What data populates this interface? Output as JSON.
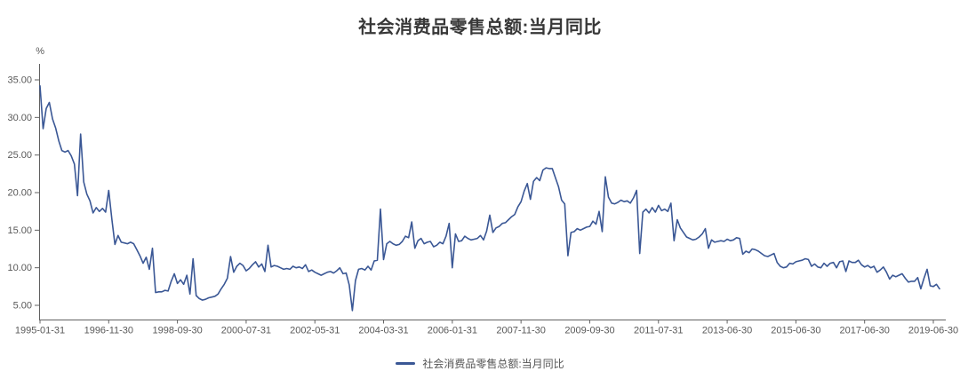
{
  "title": "社会消费品零售总额:当月同比",
  "legend": {
    "label": "社会消费品零售总额:当月同比"
  },
  "y_axis": {
    "unit": "%",
    "ticks": [
      "35.00",
      "30.00",
      "25.00",
      "20.00",
      "15.00",
      "10.00",
      "5.00"
    ]
  },
  "x_axis": {
    "tick_labels": [
      "1995-01-31",
      "1996-11-30",
      "1998-09-30",
      "2000-07-31",
      "2002-05-31",
      "2004-03-31",
      "2006-01-31",
      "2007-11-30",
      "2009-09-30",
      "2011-07-31",
      "2013-06-30",
      "2015-06-30",
      "2017-06-30",
      "2019-06-30"
    ]
  },
  "colors": {
    "line": "#3a5795",
    "axis": "#616161",
    "tick_label": "#595959",
    "title": "#383838",
    "legend_text": "#555555"
  },
  "chart_data": {
    "type": "line",
    "title": "社会消费品零售总额:当月同比",
    "ylabel": "%",
    "ylim": [
      3.1,
      37.1
    ],
    "y_ticks": [
      5,
      10,
      15,
      20,
      25,
      30,
      35
    ],
    "grid": false,
    "legend_position": "bottom",
    "x_start": "1995-01-31",
    "x_end": "2019-10-31",
    "x_tick_labels": [
      "1995-01-31",
      "1996-11-30",
      "1998-09-30",
      "2000-07-31",
      "2002-05-31",
      "2004-03-31",
      "2006-01-31",
      "2007-11-30",
      "2009-09-30",
      "2011-07-31",
      "2013-06-30",
      "2015-06-30",
      "2017-06-30",
      "2019-06-30"
    ],
    "tick_interval": 22,
    "series": [
      {
        "name": "社会消费品零售总额:当月同比",
        "values": [
          34.2,
          28.5,
          31.2,
          32.0,
          29.8,
          28.6,
          26.9,
          25.6,
          25.4,
          25.6,
          24.9,
          23.8,
          19.6,
          27.8,
          21.4,
          19.8,
          18.9,
          17.3,
          18.0,
          17.5,
          17.9,
          17.4,
          20.3,
          16.5,
          13.1,
          14.3,
          13.4,
          13.3,
          13.2,
          13.4,
          13.2,
          12.4,
          11.6,
          10.6,
          11.4,
          9.8,
          12.6,
          6.7,
          6.8,
          6.8,
          7.0,
          6.9,
          8.2,
          9.2,
          7.9,
          8.4,
          7.8,
          9.0,
          6.5,
          11.2,
          6.3,
          5.9,
          5.7,
          5.8,
          6.0,
          6.1,
          6.2,
          6.5,
          7.2,
          7.8,
          8.6,
          11.5,
          9.4,
          10.2,
          10.6,
          10.3,
          9.6,
          9.9,
          10.4,
          10.8,
          10.1,
          10.5,
          9.5,
          13.0,
          10.1,
          10.3,
          10.2,
          10.0,
          9.8,
          9.9,
          9.8,
          10.2,
          10.0,
          10.1,
          9.9,
          10.4,
          9.5,
          9.7,
          9.4,
          9.2,
          9.0,
          9.2,
          9.4,
          9.5,
          9.3,
          9.6,
          10.0,
          9.2,
          9.3,
          7.7,
          4.3,
          8.3,
          9.8,
          9.9,
          9.7,
          10.2,
          9.7,
          10.9,
          11.0,
          17.8,
          11.1,
          13.2,
          13.5,
          13.2,
          13.0,
          13.1,
          13.5,
          14.2,
          14.0,
          16.1,
          12.6,
          13.6,
          13.9,
          13.2,
          13.4,
          13.5,
          12.8,
          13.0,
          13.4,
          13.2,
          14.2,
          15.9,
          10.0,
          14.5,
          13.5,
          13.6,
          14.2,
          13.9,
          13.7,
          13.8,
          13.9,
          14.3,
          13.7,
          14.9,
          17.0,
          14.7,
          15.3,
          15.5,
          15.9,
          16.0,
          16.4,
          16.8,
          17.1,
          18.1,
          18.8,
          20.2,
          21.2,
          19.1,
          21.5,
          22.0,
          21.6,
          23.0,
          23.3,
          23.2,
          23.2,
          22.0,
          20.8,
          19.0,
          18.5,
          11.6,
          14.7,
          14.8,
          15.2,
          15.0,
          15.2,
          15.4,
          15.5,
          16.2,
          15.8,
          17.5,
          14.8,
          22.1,
          19.4,
          18.6,
          18.5,
          18.7,
          19.0,
          18.8,
          18.9,
          18.6,
          19.3,
          20.3,
          11.9,
          17.4,
          17.8,
          17.3,
          18.0,
          17.4,
          18.3,
          17.6,
          17.8,
          17.5,
          18.6,
          13.6,
          16.4,
          15.3,
          14.7,
          14.1,
          13.9,
          13.7,
          13.8,
          14.1,
          14.5,
          15.2,
          12.6,
          13.7,
          13.4,
          13.5,
          13.6,
          13.5,
          13.8,
          13.6,
          13.7,
          14.0,
          13.9,
          11.8,
          12.2,
          12.0,
          12.5,
          12.4,
          12.2,
          11.9,
          11.6,
          11.5,
          11.7,
          11.9,
          10.7,
          10.2,
          10.0,
          10.1,
          10.6,
          10.5,
          10.8,
          10.9,
          11.0,
          11.2,
          11.1,
          10.2,
          10.5,
          10.1,
          10.0,
          10.6,
          10.2,
          10.6,
          10.7,
          10.0,
          10.8,
          10.9,
          9.5,
          10.9,
          10.7,
          10.7,
          11.0,
          10.4,
          10.1,
          10.3,
          10.0,
          10.2,
          9.4,
          9.7,
          10.1,
          9.4,
          8.5,
          9.0,
          8.8,
          9.0,
          9.2,
          8.6,
          8.1,
          8.2,
          8.2,
          8.7,
          7.2,
          8.6,
          9.8,
          7.6,
          7.5,
          7.8,
          7.2
        ]
      }
    ]
  }
}
